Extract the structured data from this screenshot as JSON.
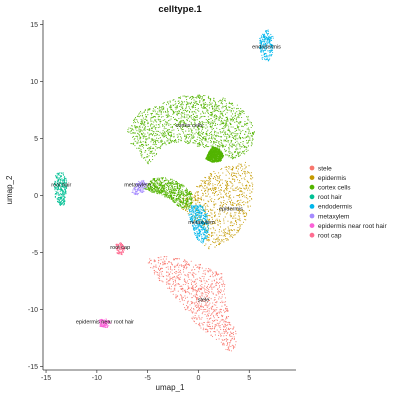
{
  "chart_data": {
    "type": "scatter",
    "title": "celltype.1",
    "xlabel": "umap_1",
    "ylabel": "umap_2",
    "xlim": [
      -15.3,
      9.6
    ],
    "ylim": [
      -15.3,
      15.4
    ],
    "xticks": [
      -15,
      -10,
      -5,
      0,
      5
    ],
    "yticks": [
      -15,
      -10,
      -5,
      0,
      5,
      10,
      15
    ],
    "grid": false,
    "legend_position": "right",
    "series": [
      {
        "name": "stele",
        "color": "#F8766D",
        "label": "stele",
        "label_position": [
          0.5,
          -9.3
        ],
        "regions": [
          {
            "type": "polygon",
            "density": 900,
            "points": [
              [
                -4.9,
                -5.5
              ],
              [
                -2.8,
                -5.3
              ],
              [
                -0.5,
                -5.8
              ],
              [
                1.6,
                -6.5
              ],
              [
                2.3,
                -6.8
              ],
              [
                2.7,
                -7.8
              ],
              [
                2.8,
                -9.3
              ],
              [
                3.0,
                -10.8
              ],
              [
                3.7,
                -11.8
              ],
              [
                3.8,
                -13.0
              ],
              [
                3.3,
                -13.8
              ],
              [
                2.8,
                -13.6
              ],
              [
                1.9,
                -12.8
              ],
              [
                0.8,
                -12.1
              ],
              [
                -0.3,
                -11.2
              ],
              [
                -1.3,
                -10.0
              ],
              [
                -2.6,
                -8.6
              ],
              [
                -4.0,
                -7.3
              ],
              [
                -5.0,
                -6.2
              ]
            ]
          }
        ]
      },
      {
        "name": "epidermis",
        "color": "#C49A00",
        "label": "epidermis",
        "label_position": [
          3.2,
          -1.3
        ],
        "regions": [
          {
            "type": "polygon",
            "density": 800,
            "points": [
              [
                1.4,
                2.1
              ],
              [
                3.2,
                2.7
              ],
              [
                4.8,
                3.0
              ],
              [
                5.3,
                2.2
              ],
              [
                5.4,
                0.6
              ],
              [
                5.1,
                -1.2
              ],
              [
                4.4,
                -2.7
              ],
              [
                3.5,
                -3.7
              ],
              [
                2.3,
                -4.2
              ],
              [
                1.6,
                -4.6
              ],
              [
                0.8,
                -4.8
              ],
              [
                0.4,
                -4.0
              ],
              [
                0.7,
                -3.3
              ],
              [
                -0.5,
                -2.1
              ],
              [
                -1.8,
                -1.0
              ],
              [
                -1.6,
                -0.2
              ],
              [
                -0.6,
                0.5
              ],
              [
                0.3,
                1.4
              ]
            ]
          }
        ]
      },
      {
        "name": "cortex cells",
        "color": "#53B400",
        "label": "cortex cells",
        "label_position": [
          -0.9,
          6.0
        ],
        "regions": [
          {
            "type": "polygon",
            "density": 1600,
            "points": [
              [
                -7.0,
                5.7
              ],
              [
                -5.9,
                7.3
              ],
              [
                -3.8,
                8.0
              ],
              [
                -1.9,
                8.7
              ],
              [
                0.2,
                8.9
              ],
              [
                2.4,
                8.6
              ],
              [
                3.6,
                8.1
              ],
              [
                4.5,
                7.5
              ],
              [
                5.2,
                6.6
              ],
              [
                5.6,
                5.6
              ],
              [
                5.4,
                4.6
              ],
              [
                4.6,
                3.6
              ],
              [
                3.9,
                3.1
              ],
              [
                3.4,
                3.2
              ],
              [
                2.6,
                3.6
              ],
              [
                2.3,
                4.3
              ],
              [
                1.8,
                4.2
              ],
              [
                1.0,
                4.1
              ],
              [
                0.4,
                4.2
              ],
              [
                -0.5,
                4.4
              ],
              [
                -1.5,
                4.6
              ],
              [
                -2.7,
                4.6
              ],
              [
                -3.6,
                4.3
              ],
              [
                -4.2,
                3.5
              ],
              [
                -4.8,
                2.7
              ],
              [
                -5.4,
                3.1
              ],
              [
                -6.1,
                4.0
              ],
              [
                -6.8,
                4.7
              ]
            ]
          },
          {
            "type": "polygon",
            "density": 900,
            "points": [
              [
                1.4,
                4.3
              ],
              [
                2.1,
                4.1
              ],
              [
                2.5,
                3.5
              ],
              [
                2.2,
                3.0
              ],
              [
                1.4,
                2.9
              ],
              [
                0.7,
                3.2
              ],
              [
                1.0,
                3.8
              ]
            ]
          },
          {
            "type": "polygon",
            "density": 700,
            "points": [
              [
                -5.4,
                0.6
              ],
              [
                -4.5,
                1.5
              ],
              [
                -3.0,
                1.6
              ],
              [
                -1.6,
                1.0
              ],
              [
                -0.7,
                0.3
              ],
              [
                -0.5,
                -0.5
              ],
              [
                -1.0,
                -1.2
              ],
              [
                -1.9,
                -1.0
              ],
              [
                -2.6,
                -0.5
              ],
              [
                -3.7,
                0.1
              ],
              [
                -4.7,
                0.3
              ]
            ]
          }
        ]
      },
      {
        "name": "root hair",
        "color": "#00C094",
        "label": "root hair",
        "label_position": [
          -13.5,
          0.8
        ],
        "regions": [
          {
            "type": "polygon",
            "density": 280,
            "points": [
              [
                -14.0,
                2.0
              ],
              [
                -13.3,
                2.0
              ],
              [
                -12.9,
                1.3
              ],
              [
                -13.0,
                0.2
              ],
              [
                -13.2,
                -0.8
              ],
              [
                -13.6,
                -0.9
              ],
              [
                -14.1,
                -0.2
              ],
              [
                -14.2,
                1.0
              ]
            ]
          }
        ]
      },
      {
        "name": "endodermis",
        "color": "#00B6EB",
        "label": "endodermis",
        "label_position": [
          6.7,
          12.9
        ],
        "regions": [
          {
            "type": "polygon",
            "density": 240,
            "points": [
              [
                6.0,
                13.9
              ],
              [
                6.8,
                14.6
              ],
              [
                7.4,
                13.9
              ],
              [
                7.3,
                12.4
              ],
              [
                6.9,
                11.8
              ],
              [
                6.3,
                11.9
              ],
              [
                6.0,
                12.9
              ]
            ]
          }
        ]
      },
      {
        "name": "metaxylem",
        "color": "#A58AFF",
        "label": "metaxylem",
        "label_position": [
          -6.0,
          0.8
        ],
        "regions": [
          {
            "type": "polygon",
            "density": 130,
            "points": [
              [
                -6.6,
                0.3
              ],
              [
                -6.0,
                1.2
              ],
              [
                -5.4,
                1.4
              ],
              [
                -5.0,
                0.9
              ],
              [
                -5.4,
                0.3
              ],
              [
                -6.1,
                0.0
              ]
            ]
          }
        ]
      },
      {
        "name": "epidermis near root hair",
        "color": "#FB61D7",
        "label": "epidermis near root hair",
        "label_position": [
          -9.2,
          -11.2
        ],
        "regions": [
          {
            "type": "polygon",
            "density": 120,
            "points": [
              [
                -9.8,
                -10.9
              ],
              [
                -9.0,
                -10.8
              ],
              [
                -8.6,
                -11.2
              ],
              [
                -9.0,
                -11.6
              ],
              [
                -9.7,
                -11.5
              ]
            ]
          }
        ]
      },
      {
        "name": "root cap",
        "color": "#FF6C91",
        "label": "root cap",
        "label_position": [
          -7.7,
          -4.7
        ],
        "regions": [
          {
            "type": "polygon",
            "density": 110,
            "points": [
              [
                -8.2,
                -4.3
              ],
              [
                -7.6,
                -4.1
              ],
              [
                -7.2,
                -4.6
              ],
              [
                -7.5,
                -5.2
              ],
              [
                -8.0,
                -5.1
              ]
            ]
          }
        ]
      },
      {
        "name": "metaxylem (cyan cells)",
        "color": "#00B6EB",
        "label": "metaxylem",
        "label_position": [
          0.3,
          -2.5
        ],
        "regions": [
          {
            "type": "polygon",
            "density": 420,
            "points": [
              [
                -0.8,
                -0.9
              ],
              [
                0.3,
                -0.8
              ],
              [
                0.9,
                -1.6
              ],
              [
                1.0,
                -2.9
              ],
              [
                0.9,
                -3.8
              ],
              [
                0.3,
                -4.3
              ],
              [
                -0.3,
                -3.6
              ],
              [
                -0.7,
                -2.4
              ],
              [
                -1.0,
                -1.6
              ]
            ]
          }
        ],
        "legend": false
      }
    ],
    "legend": [
      "stele",
      "epidermis",
      "cortex cells",
      "root hair",
      "endodermis",
      "metaxylem",
      "epidermis near root hair",
      "root cap"
    ],
    "legend_colors": [
      "#F8766D",
      "#C49A00",
      "#53B400",
      "#00C094",
      "#00B6EB",
      "#A58AFF",
      "#FB61D7",
      "#FF6C91"
    ]
  }
}
